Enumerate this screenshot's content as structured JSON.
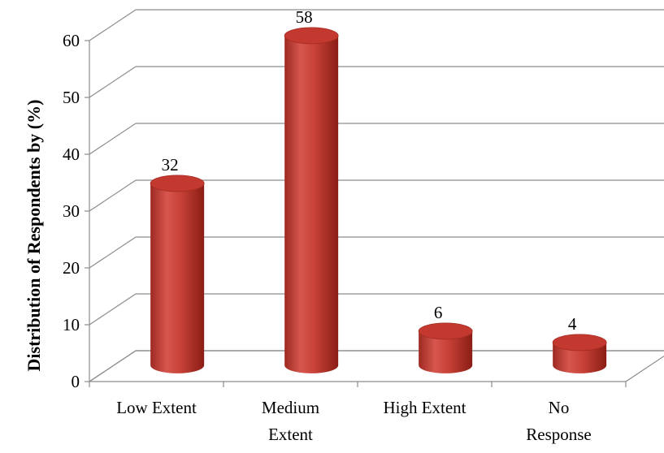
{
  "chart_data": {
    "type": "bar",
    "style": "3d-cylinder",
    "categories": [
      [
        "Low Extent"
      ],
      [
        "Medium",
        "Extent"
      ],
      [
        "High Extent"
      ],
      [
        "No",
        "Response"
      ]
    ],
    "values": [
      32,
      58,
      6,
      4
    ],
    "ylabel": "Distribution of Respondents by  (%)",
    "xlabel": "",
    "ylim": [
      0,
      60
    ],
    "yticks": [
      0,
      10,
      20,
      30,
      40,
      50,
      60
    ],
    "grid": true,
    "legend": "none",
    "bar_color": "#c0392b",
    "bar_color_light": "#d9544c",
    "bar_color_dark": "#8f1f18"
  }
}
